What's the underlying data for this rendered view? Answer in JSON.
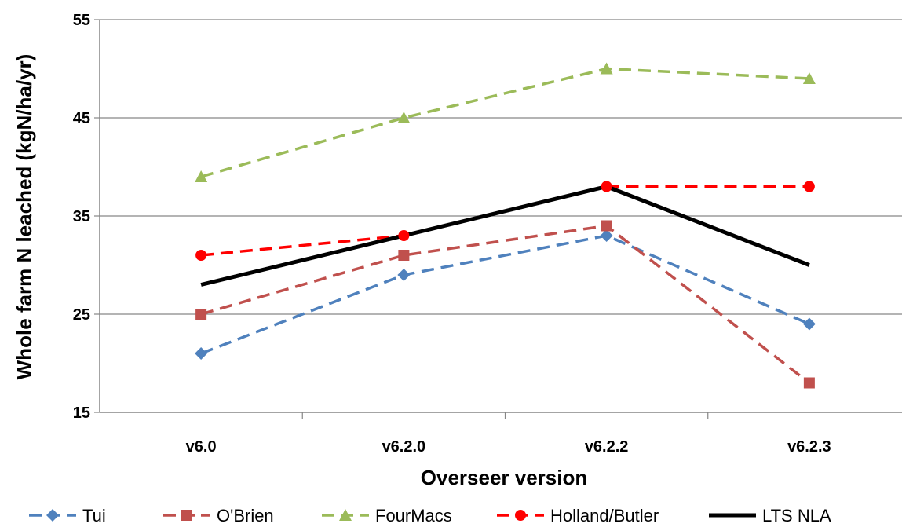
{
  "chart_data": {
    "type": "line",
    "title": "",
    "xlabel": "Overseer version",
    "ylabel": "Whole farm N leached (kgN/ha/yr)",
    "categories": [
      "v6.0",
      "v6.2.0",
      "v6.2.2",
      "v6.2.3"
    ],
    "ylim": [
      15,
      55
    ],
    "yticks": [
      15,
      25,
      35,
      45,
      55
    ],
    "grid": "horizontal",
    "legend_position": "bottom",
    "series": [
      {
        "name": "Tui",
        "values": [
          21,
          29,
          33,
          24
        ],
        "color": "#4F81BD",
        "dash": "dashed",
        "marker": "diamond"
      },
      {
        "name": "O'Brien",
        "values": [
          25,
          31,
          34,
          18
        ],
        "color": "#C0504D",
        "dash": "dashed",
        "marker": "square"
      },
      {
        "name": "FourMacs",
        "values": [
          39,
          45,
          50,
          49
        ],
        "color": "#9BBB59",
        "dash": "dashed",
        "marker": "triangle"
      },
      {
        "name": "Holland/Butler",
        "values": [
          31,
          33,
          38,
          38
        ],
        "color": "#FF0000",
        "dash": "dashed",
        "marker": "circle"
      },
      {
        "name": "LTS NLA",
        "values": [
          28,
          33,
          38,
          30
        ],
        "color": "#000000",
        "dash": "solid",
        "marker": "none"
      }
    ]
  }
}
